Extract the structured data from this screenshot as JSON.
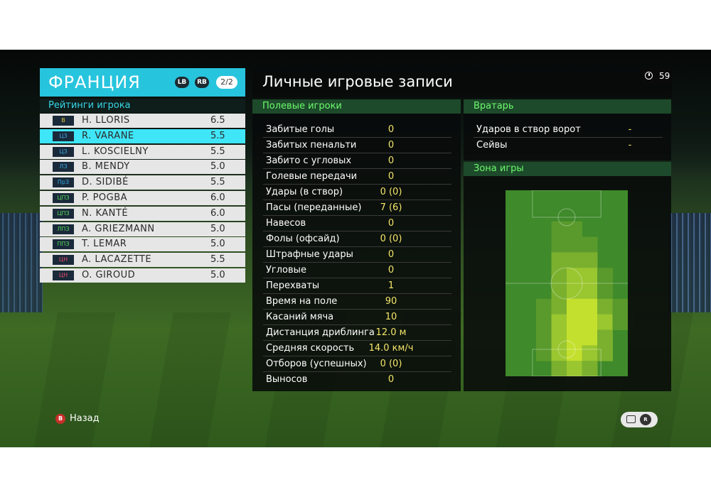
{
  "team": {
    "name": "ФРАНЦИЯ",
    "lb": "LB",
    "rb": "RB",
    "page": "2/2"
  },
  "rating_header": "Рейтинги игрока",
  "players": [
    {
      "pos": "В",
      "pos_color": "#e8c83a",
      "name": "H. LLORIS",
      "rating": "6.5"
    },
    {
      "pos": "ЦЗ",
      "pos_color": "#3aa8e8",
      "name": "R. VARANE",
      "rating": "5.5",
      "selected": true
    },
    {
      "pos": "ЦЗ",
      "pos_color": "#3aa8e8",
      "name": "L. KOSCIELNY",
      "rating": "5.5"
    },
    {
      "pos": "ЛЗ",
      "pos_color": "#3aa8e8",
      "name": "B. MENDY",
      "rating": "5.0"
    },
    {
      "pos": "ПрЗ",
      "pos_color": "#3aa8e8",
      "name": "D. SIDIBÉ",
      "rating": "5.5"
    },
    {
      "pos": "ЦПЗ",
      "pos_color": "#5ad85a",
      "name": "P. POGBA",
      "rating": "6.0"
    },
    {
      "pos": "ЦПЗ",
      "pos_color": "#5ad85a",
      "name": "N. KANTÉ",
      "rating": "6.0"
    },
    {
      "pos": "ЛПЗ",
      "pos_color": "#5ad85a",
      "name": "A. GRIEZMANN",
      "rating": "5.0"
    },
    {
      "pos": "ППЗ",
      "pos_color": "#5ad85a",
      "name": "T. LEMAR",
      "rating": "5.0"
    },
    {
      "pos": "ЦН",
      "pos_color": "#e84a6a",
      "name": "A. LACAZETTE",
      "rating": "5.5"
    },
    {
      "pos": "ЦН",
      "pos_color": "#e84a6a",
      "name": "O. GIROUD",
      "rating": "5.0"
    }
  ],
  "title": "Личные игровые записи",
  "timer": "59",
  "field_section": "Полевые игроки",
  "field_stats": [
    {
      "label": "Забитые голы",
      "value": "0"
    },
    {
      "label": "Забитых пенальти",
      "value": "0"
    },
    {
      "label": "Забито с угловых",
      "value": "0"
    },
    {
      "label": "Голевые передачи",
      "value": "0"
    },
    {
      "label": "Удары (в створ)",
      "value": "0 (0)"
    },
    {
      "label": "Пасы (переданные)",
      "value": "7 (6)"
    },
    {
      "label": "Навесов",
      "value": "0"
    },
    {
      "label": "Фолы (офсайд)",
      "value": "0 (0)"
    },
    {
      "label": "Штрафные удары",
      "value": "0"
    },
    {
      "label": "Угловые",
      "value": "0"
    },
    {
      "label": "Перехваты",
      "value": "1"
    },
    {
      "label": "Время на поле",
      "value": "90"
    },
    {
      "label": "Касаний мяча",
      "value": "10"
    },
    {
      "label": "Дистанция дриблинга",
      "value": "12.0 м"
    },
    {
      "label": "Средняя скорость",
      "value": "14.0 км/ч"
    },
    {
      "label": "Отборов (успешных)",
      "value": "0 (0)"
    },
    {
      "label": "Выносов",
      "value": "0"
    }
  ],
  "gk_section": "Вратарь",
  "gk_stats": [
    {
      "label": "Ударов в створ ворот",
      "value": "-"
    },
    {
      "label": "Сейвы",
      "value": "-"
    }
  ],
  "zone_section": "Зона игры",
  "heatmap": {
    "cols": 8,
    "rows": 12,
    "base_color": "#3f8a2a",
    "levels": [
      [
        0,
        0,
        0,
        0,
        0,
        0,
        0,
        0
      ],
      [
        0,
        0,
        0,
        0,
        0,
        0,
        0,
        0
      ],
      [
        0,
        0,
        0,
        1,
        1,
        0,
        0,
        0
      ],
      [
        0,
        0,
        0,
        1,
        1,
        1,
        0,
        0
      ],
      [
        0,
        0,
        0,
        2,
        2,
        2,
        0,
        0
      ],
      [
        0,
        0,
        0,
        2,
        3,
        3,
        1,
        0
      ],
      [
        0,
        0,
        0,
        2,
        3,
        3,
        1,
        0
      ],
      [
        0,
        0,
        1,
        2,
        4,
        4,
        2,
        1
      ],
      [
        0,
        0,
        1,
        3,
        4,
        4,
        3,
        1
      ],
      [
        0,
        0,
        1,
        3,
        4,
        4,
        2,
        0
      ],
      [
        0,
        0,
        1,
        3,
        4,
        3,
        2,
        0
      ],
      [
        0,
        0,
        0,
        2,
        3,
        2,
        0,
        0
      ]
    ]
  },
  "back_label": "Назад",
  "back_key": "B",
  "ctrl_key": "R"
}
